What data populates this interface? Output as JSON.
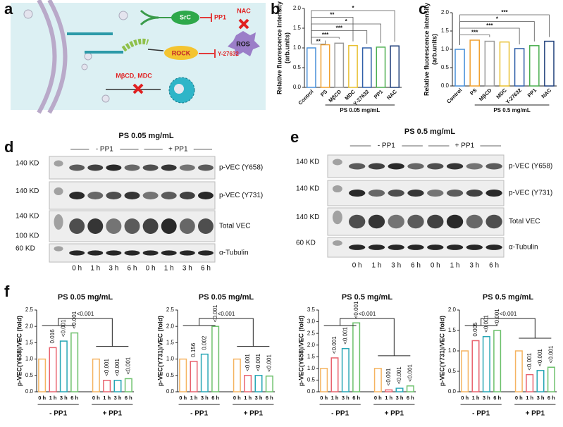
{
  "panel_labels": [
    "a",
    "b",
    "c",
    "d",
    "e",
    "f"
  ],
  "diagram": {
    "src": "SrC",
    "pp1": "PP1",
    "nac": "NAC",
    "ros": "ROS",
    "rock": "ROCK",
    "y27632": "Y-27632",
    "mbcd": "MβCD,  MDC"
  },
  "blots": [
    {
      "title": "PS 0.05 mg/mL",
      "groups": [
        "- PP1",
        "+ PP1"
      ],
      "times": [
        "0 h",
        "1 h",
        "3 h",
        "6 h",
        "0 h",
        "1 h",
        "3 h",
        "6 h"
      ],
      "rows": [
        {
          "name": "p-VEC (Y658)",
          "markers": [
            "140 KD"
          ]
        },
        {
          "name": "p-VEC (Y731)",
          "markers": [
            "140 KD"
          ]
        },
        {
          "name": "Total VEC",
          "markers": [
            "140 KD",
            "100 KD"
          ]
        },
        {
          "name": "α-Tubulin",
          "markers": [
            "60 KD"
          ]
        }
      ]
    },
    {
      "title": "PS 0.5 mg/mL",
      "groups": [
        "- PP1",
        "+ PP1"
      ],
      "times": [
        "0 h",
        "1 h",
        "3 h",
        "6 h",
        "0 h",
        "1 h",
        "3 h",
        "6 h"
      ],
      "rows": [
        {
          "name": "p-VEC (Y658)",
          "markers": [
            "140 KD"
          ]
        },
        {
          "name": "p-VEC (Y731)",
          "markers": [
            "140 KD"
          ]
        },
        {
          "name": "Total VEC",
          "markers": [
            "140 KD"
          ]
        },
        {
          "name": "α-Tubulin",
          "markers": [
            "60 KD"
          ]
        }
      ]
    }
  ],
  "chart_data": [
    {
      "type": "bar",
      "xlabel": "PS 0.05 mg/mL",
      "ylabel": [
        "Relative fluorescence intensity",
        "(arb.units)"
      ],
      "categories": [
        "Control",
        "PS",
        "MβCD",
        "MDC",
        "Y-27632",
        "PP1",
        "NAC"
      ],
      "values": [
        1.0,
        1.08,
        1.12,
        1.06,
        1.0,
        1.02,
        1.05
      ],
      "colors": [
        "#4a90d9",
        "#f0a030",
        "#9a9a9a",
        "#e8c030",
        "#2f5fa8",
        "#4caf50",
        "#1f3f7a"
      ],
      "ylim": [
        0,
        2
      ],
      "yticks": [
        {
          "value": 0,
          "label": "0.0"
        },
        0.5,
        {
          "value": 1,
          "label": "1.0"
        },
        1.5,
        {
          "value": 2,
          "label": "2.0"
        }
      ],
      "significance": [
        {
          "vs": "NAC",
          "label": "*"
        },
        {
          "vs": "MDC",
          "label": "**"
        },
        {
          "vs": "PP1",
          "label": "*"
        },
        {
          "vs": "Y-27632",
          "label": "***"
        },
        {
          "vs": "MβCD",
          "label": "***"
        },
        {
          "vs": "PS",
          "label": "**"
        }
      ]
    },
    {
      "type": "bar",
      "xlabel": "PS 0.5 mg/mL",
      "ylabel": [
        "Relative fluorescence intensity",
        "(arb.units)"
      ],
      "categories": [
        "Control",
        "PS",
        "MβCD",
        "MDC",
        "Y-27632",
        "PP1",
        "NAC"
      ],
      "values": [
        1.0,
        1.25,
        1.22,
        1.2,
        1.02,
        1.1,
        1.22
      ],
      "colors": [
        "#4a90d9",
        "#f0a030",
        "#9a9a9a",
        "#e8c030",
        "#2f5fa8",
        "#4caf50",
        "#1f3f7a"
      ],
      "ylim": [
        0,
        2
      ],
      "yticks": [
        {
          "value": 0,
          "label": "0.0"
        },
        0.5,
        {
          "value": 1,
          "label": "1.0"
        },
        1.5,
        {
          "value": 2,
          "label": "2.0"
        }
      ],
      "significance": [
        {
          "vs": "NAC",
          "label": "***"
        },
        {
          "vs": "PP1",
          "label": "*"
        },
        {
          "vs": "Y-27632",
          "label": "***"
        },
        {
          "vs": "MβCD",
          "label": "***"
        }
      ]
    },
    {
      "type": "bar",
      "title": "PS 0.05 mg/mL",
      "ylabel": [
        "p-VEC(Y658)/VEC (fold)"
      ],
      "groups": [
        "- PP1",
        "+ PP1"
      ],
      "categories": [
        "0 h",
        "1 h",
        "3 h",
        "6 h",
        "0 h",
        "1 h",
        "3 h",
        "6 h"
      ],
      "values": [
        1.0,
        1.35,
        1.55,
        1.8,
        1.0,
        0.35,
        0.35,
        0.4
      ],
      "p_values": [
        null,
        "0.016",
        "<0.001",
        "<0.001",
        null,
        "<0.001",
        "<0.001",
        "<0.001"
      ],
      "comparison": "<0.001",
      "colors": [
        "#f5b461",
        "#e8636f",
        "#27a6b5",
        "#6cc06b",
        "#f5b461",
        "#e8636f",
        "#27a6b5",
        "#6cc06b"
      ],
      "ylim": [
        0,
        2.5
      ],
      "yticks": [
        {
          "value": 0,
          "label": "0.0"
        },
        0.5,
        {
          "value": 1,
          "label": "1.0"
        },
        1.5,
        {
          "value": 2,
          "label": "2.0"
        },
        2.5
      ]
    },
    {
      "type": "bar",
      "title": "PS 0.05 mg/mL",
      "ylabel": [
        "p-VEC(Y731)/VEC (fold)"
      ],
      "groups": [
        "- PP1",
        "+ PP1"
      ],
      "categories": [
        "0 h",
        "1 h",
        "3 h",
        "6 h",
        "0 h",
        "1 h",
        "3 h",
        "6 h"
      ],
      "values": [
        1.0,
        0.93,
        1.15,
        2.0,
        1.0,
        0.5,
        0.5,
        0.48
      ],
      "p_values": [
        null,
        "0.156",
        "0.002",
        "<0.001",
        null,
        "<0.001",
        "<0.001",
        "<0.001"
      ],
      "comparison": "<0.001",
      "colors": [
        "#f5b461",
        "#e8636f",
        "#27a6b5",
        "#6cc06b",
        "#f5b461",
        "#e8636f",
        "#27a6b5",
        "#6cc06b"
      ],
      "ylim": [
        0,
        2.5
      ],
      "yticks": [
        {
          "value": 0,
          "label": "0.0"
        },
        0.5,
        {
          "value": 1,
          "label": "1.0"
        },
        1.5,
        {
          "value": 2,
          "label": "2.0"
        },
        2.5
      ]
    },
    {
      "type": "bar",
      "title": "PS 0.5 mg/mL",
      "ylabel": [
        "p-VEC(Y658)/VEC (fold)"
      ],
      "groups": [
        "- PP1",
        "+ PP1"
      ],
      "categories": [
        "0 h",
        "1 h",
        "3 h",
        "6 h",
        "0 h",
        "1 h",
        "3 h",
        "6 h"
      ],
      "values": [
        1.0,
        1.45,
        1.85,
        2.95,
        1.0,
        0.08,
        0.15,
        0.25
      ],
      "p_values": [
        null,
        "<0.001",
        "<0.001",
        "<0.001",
        null,
        "<0.001",
        "<0.001",
        "<0.001"
      ],
      "comparison": "<0.001",
      "colors": [
        "#f5b461",
        "#e8636f",
        "#27a6b5",
        "#6cc06b",
        "#f5b461",
        "#e8636f",
        "#27a6b5",
        "#6cc06b"
      ],
      "ylim": [
        0,
        3.5
      ],
      "yticks": [
        {
          "value": 0,
          "label": "0.0"
        },
        0.5,
        {
          "value": 1,
          "label": "1.0"
        },
        1.5,
        {
          "value": 2,
          "label": "2.0"
        },
        2.5,
        {
          "value": 3,
          "label": "3.0"
        },
        3.5
      ]
    },
    {
      "type": "bar",
      "title": "PS 0.5 mg/mL",
      "ylabel": [
        "p-VEC(Y731)/VEC (fold)"
      ],
      "groups": [
        "- PP1",
        "+ PP1"
      ],
      "categories": [
        "0 h",
        "1 h",
        "3 h",
        "6 h",
        "0 h",
        "1 h",
        "3 h",
        "6 h"
      ],
      "values": [
        1.0,
        1.25,
        1.35,
        1.5,
        1.0,
        0.42,
        0.52,
        0.6
      ],
      "p_values": [
        null,
        "0.005",
        "<0.001",
        "<0.001",
        null,
        "<0.001",
        "<0.001",
        "<0.001"
      ],
      "comparison": "<0.001",
      "colors": [
        "#f5b461",
        "#e8636f",
        "#27a6b5",
        "#6cc06b",
        "#f5b461",
        "#e8636f",
        "#27a6b5",
        "#6cc06b"
      ],
      "ylim": [
        0,
        2
      ],
      "yticks": [
        {
          "value": 0,
          "label": "0.0"
        },
        0.5,
        {
          "value": 1,
          "label": "1.0"
        },
        1.5,
        {
          "value": 2,
          "label": "2.0"
        }
      ]
    }
  ]
}
